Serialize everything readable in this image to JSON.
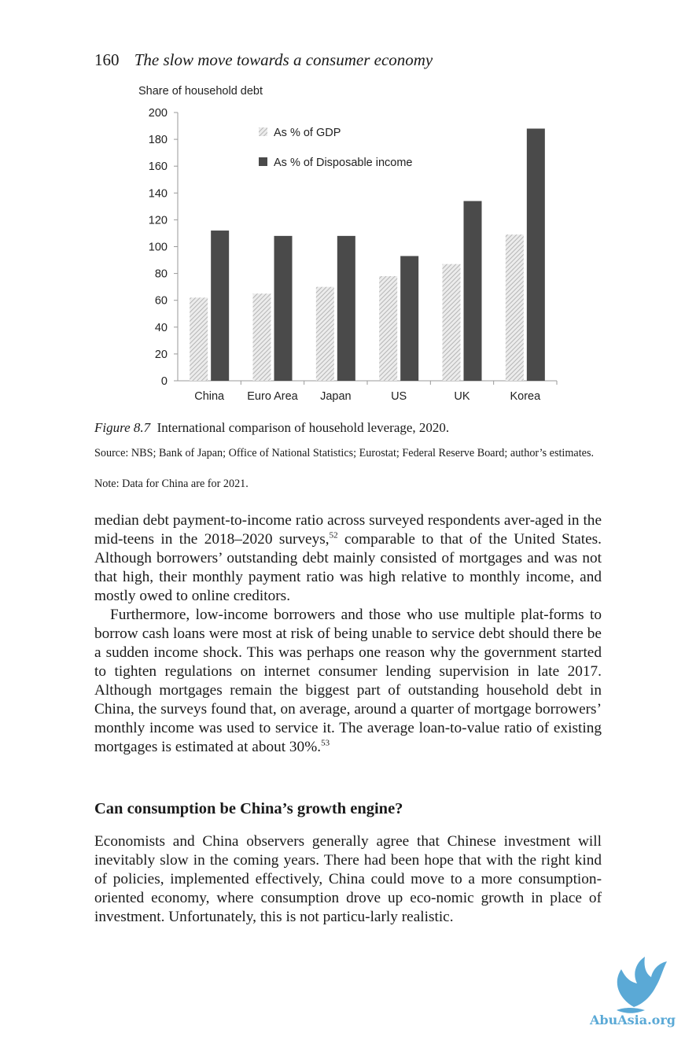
{
  "header": {
    "page_number": "160",
    "running_title": "The slow move towards a consumer economy"
  },
  "chart_data": {
    "type": "bar",
    "ylabel": "Share of household debt",
    "ylim": [
      0,
      200
    ],
    "yticks": [
      0,
      20,
      40,
      60,
      80,
      100,
      120,
      140,
      160,
      180,
      200
    ],
    "categories": [
      "China",
      "Euro Area",
      "Japan",
      "US",
      "UK",
      "Korea"
    ],
    "series": [
      {
        "name": "As % of GDP",
        "values": [
          62,
          65,
          70,
          78,
          87,
          109
        ],
        "color": "#cfcfcf",
        "pattern": "diagonal-hatch"
      },
      {
        "name": "As % of Disposable income",
        "values": [
          112,
          108,
          108,
          93,
          134,
          188
        ],
        "color": "#4a4a4a"
      }
    ],
    "legend_position": "top-center",
    "grid": false
  },
  "figure": {
    "label": "Figure 8.7",
    "caption": "International comparison of household leverage, 2020.",
    "source": "Source: NBS; Bank of Japan; Office of National Statistics; Eurostat; Federal Reserve Board; author’s estimates.",
    "note": "Note: Data for China are for 2021."
  },
  "body": {
    "p1_a": "median debt payment-to-income ratio across surveyed respondents aver-aged in the mid-teens in the 2018–2020 surveys,",
    "p1_sup": "52",
    "p1_b": " comparable to that of the United States. Although borrowers’ outstanding debt mainly consisted of mortgages and was not that high, their monthly payment ratio was high relative to monthly income, and mostly owed to online creditors.",
    "p2_a": "Furthermore, low-income borrowers and those who use multiple plat-forms to borrow cash loans were most at risk of being unable to service debt should there be a sudden income shock. This was perhaps one reason why the government started to tighten regulations on internet consumer lending supervision in late 2017. Although mortgages remain the biggest part of outstanding household debt in China, the surveys found that, on average, around a quarter of mortgage borrowers’ monthly income was used to service it. The average loan-to-value ratio of existing mortgages is estimated at about 30%.",
    "p2_sup": "53",
    "heading": "Can consumption be China’s growth engine?",
    "p3": "Economists and China observers generally agree that Chinese investment will inevitably slow in the coming years. There had been hope that with the right kind of policies, implemented effectively, China could move to a more consumption-oriented economy, where consumption drove up eco-nomic growth in place of investment. Unfortunately, this is not particu-larly realistic."
  },
  "watermark": {
    "text": "AbuAsia.org",
    "color": "#5aa9d6",
    "icon": "bird-logo-icon"
  }
}
